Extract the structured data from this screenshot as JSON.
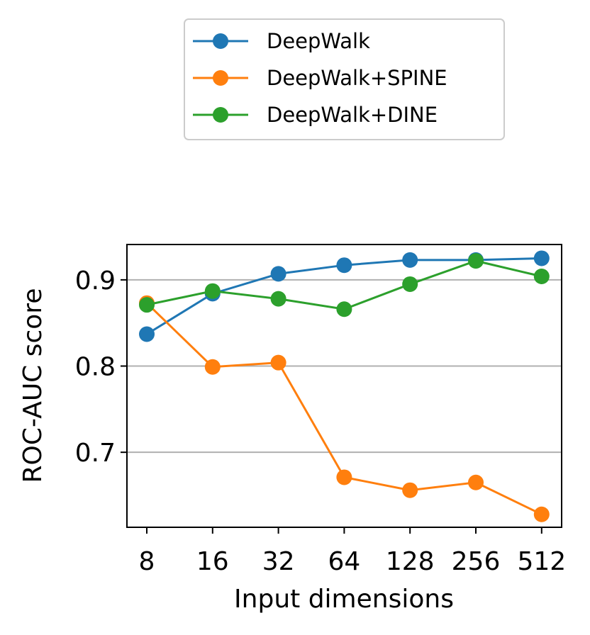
{
  "chart_data": {
    "type": "line",
    "title": "",
    "xlabel": "Input dimensions",
    "ylabel": "ROC-AUC score",
    "categories": [
      "8",
      "16",
      "32",
      "64",
      "128",
      "256",
      "512"
    ],
    "ylim": [
      0.613,
      0.941
    ],
    "yticks": [
      0.7,
      0.8,
      0.9
    ],
    "ytick_labels": [
      "0.7",
      "0.8",
      "0.9"
    ],
    "grid": "horizontal",
    "legend_position": "top, outside plot",
    "series": [
      {
        "name": "DeepWalk",
        "color": "#1f77b4",
        "values": [
          0.837,
          0.884,
          0.907,
          0.917,
          0.923,
          0.923,
          0.925
        ]
      },
      {
        "name": "DeepWalk+SPINE",
        "color": "#ff7f0e",
        "values": [
          0.873,
          0.799,
          0.804,
          0.671,
          0.656,
          0.665,
          0.628
        ]
      },
      {
        "name": "DeepWalk+DINE",
        "color": "#2ca02c",
        "values": [
          0.871,
          0.887,
          0.878,
          0.866,
          0.895,
          0.922,
          0.904
        ]
      }
    ]
  }
}
